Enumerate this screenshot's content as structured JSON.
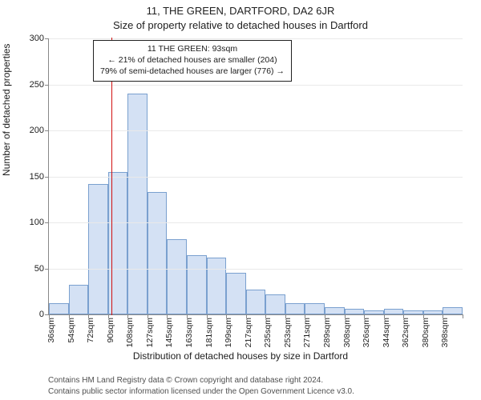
{
  "title_main": "11, THE GREEN, DARTFORD, DA2 6JR",
  "title_sub": "Size of property relative to detached houses in Dartford",
  "y_axis_label": "Number of detached properties",
  "x_axis_title": "Distribution of detached houses by size in Dartford",
  "chart": {
    "type": "histogram",
    "ylim": [
      0,
      300
    ],
    "ytick_step": 50,
    "yticks": [
      0,
      50,
      100,
      150,
      200,
      250,
      300
    ],
    "grid_color": "#e9e9e9",
    "axis_color": "#888888",
    "background_color": "#ffffff",
    "bar_fill": "#d4e1f4",
    "bar_border": "#7aa0cf",
    "marker_color": "#d11010",
    "marker_bin_index": 3,
    "marker_label_sqm": "93sqm",
    "title_fontsize": 13,
    "label_fontsize": 12,
    "tick_fontsize": 11,
    "bar_width_rel": 1.0,
    "bins": [
      {
        "label": "36sqm",
        "value": 12
      },
      {
        "label": "54sqm",
        "value": 32
      },
      {
        "label": "72sqm",
        "value": 142
      },
      {
        "label": "90sqm",
        "value": 155
      },
      {
        "label": "108sqm",
        "value": 240
      },
      {
        "label": "127sqm",
        "value": 133
      },
      {
        "label": "145sqm",
        "value": 82
      },
      {
        "label": "163sqm",
        "value": 64
      },
      {
        "label": "181sqm",
        "value": 62
      },
      {
        "label": "199sqm",
        "value": 45
      },
      {
        "label": "217sqm",
        "value": 27
      },
      {
        "label": "235sqm",
        "value": 22
      },
      {
        "label": "253sqm",
        "value": 12
      },
      {
        "label": "271sqm",
        "value": 12
      },
      {
        "label": "289sqm",
        "value": 8
      },
      {
        "label": "308sqm",
        "value": 6
      },
      {
        "label": "326sqm",
        "value": 4
      },
      {
        "label": "344sqm",
        "value": 6
      },
      {
        "label": "362sqm",
        "value": 4
      },
      {
        "label": "380sqm",
        "value": 4
      },
      {
        "label": "398sqm",
        "value": 8
      }
    ]
  },
  "annotation": {
    "line1": "11 THE GREEN: 93sqm",
    "line2": "← 21% of detached houses are smaller (204)",
    "line3": "79% of semi-detached houses are larger (776) →"
  },
  "attribution": {
    "line1": "Contains HM Land Registry data © Crown copyright and database right 2024.",
    "line2": "Contains public sector information licensed under the Open Government Licence v3.0."
  }
}
